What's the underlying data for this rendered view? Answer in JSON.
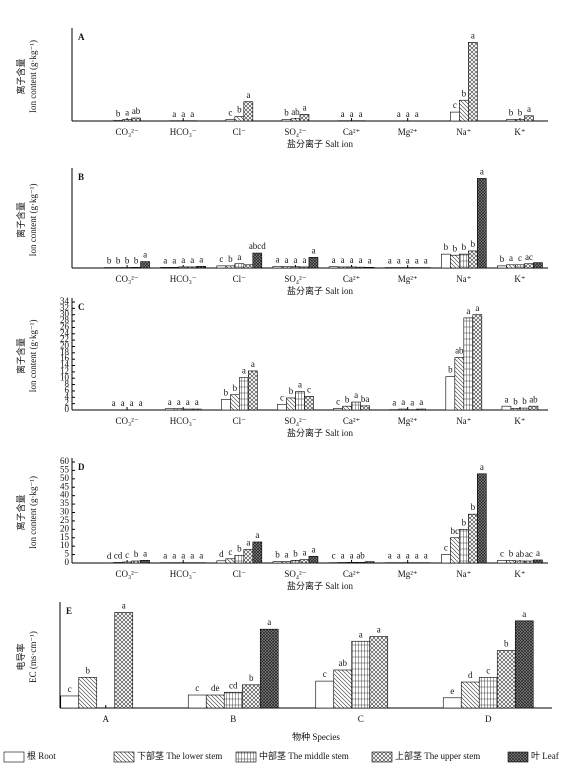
{
  "chart_data": [
    {
      "type": "bar",
      "label": "A",
      "ylabel": "离子含量",
      "ylabel2": "Ion content (g·kg⁻¹)",
      "xlabel": "盐分离子 Salt ion",
      "categories": [
        "CO₃²⁻",
        "HCO₃⁻",
        "Cl⁻",
        "SO₄²⁻",
        "Ca²⁺",
        "Mg²⁺",
        "Na⁺",
        "K⁺"
      ],
      "ylim": [
        0,
        60
      ],
      "series": [
        {
          "name": "根 Root",
          "values": [
            0.3,
            0.2,
            1,
            1,
            0.2,
            0.1,
            6,
            1
          ],
          "letters": [
            "b",
            "a",
            "c",
            "b",
            "a",
            "a",
            "c",
            "b"
          ]
        },
        {
          "name": "下部茎 The lower stem",
          "values": [
            1,
            0.2,
            3,
            1.5,
            0.2,
            0.1,
            14,
            1
          ],
          "letters": [
            "a",
            "a",
            "b",
            "ab",
            "a",
            "a",
            "b",
            "b"
          ]
        },
        {
          "name": "中部茎 The middle stem",
          "values": [
            null,
            null,
            null,
            null,
            null,
            null,
            null,
            null
          ],
          "letters": [
            null,
            null,
            null,
            null,
            null,
            null,
            null,
            null
          ]
        },
        {
          "name": "上部茎 The upper stem",
          "values": [
            2,
            0.2,
            13,
            4.5,
            0.2,
            0.1,
            53,
            3.5
          ],
          "letters": [
            "ab",
            "a",
            "a",
            "a",
            "a",
            "a",
            "a",
            "a"
          ]
        },
        {
          "name": "叶 Leaf",
          "values": [
            null,
            null,
            null,
            null,
            null,
            null,
            null,
            null
          ],
          "letters": [
            null,
            null,
            null,
            null,
            null,
            null,
            null,
            null
          ]
        }
      ]
    },
    {
      "type": "bar",
      "label": "B",
      "ylabel": "离子含量",
      "ylabel2": "Ion content (g·kg⁻¹)",
      "xlabel": "盐分离子 Salt ion",
      "categories": [
        "CO₃²⁻",
        "HCO₃⁻",
        "Cl⁻",
        "SO₄²⁻",
        "Ca²⁺",
        "Mg²⁺",
        "Na⁺",
        "K⁺"
      ],
      "ylim": [
        0,
        45
      ],
      "series": [
        {
          "name": "根 Root",
          "values": [
            0.2,
            0.3,
            1,
            0.8,
            0.6,
            0.2,
            6.5,
            1
          ],
          "letters": [
            "b",
            "a",
            "c",
            "a",
            "a",
            "a",
            "b",
            "b"
          ]
        },
        {
          "name": "下部茎 The lower stem",
          "values": [
            0.2,
            0.3,
            1,
            0.6,
            0.5,
            0.2,
            6,
            1.5
          ],
          "letters": [
            "b",
            "a",
            "b",
            "a",
            "a",
            "a",
            "b",
            "a"
          ]
        },
        {
          "name": "中部茎 The middle stem",
          "values": [
            0.2,
            0.5,
            2,
            0.6,
            0.5,
            0.2,
            6.5,
            1.5
          ],
          "letters": [
            "b",
            "a",
            "a",
            "a",
            "a",
            "a",
            "b",
            "c"
          ]
        },
        {
          "name": "上部茎 The upper stem",
          "values": [
            0.3,
            0.5,
            1.5,
            0.5,
            0.4,
            0.2,
            8,
            2
          ],
          "letters": [
            "b",
            "a",
            null,
            "a",
            "a",
            "a",
            "b",
            "ac"
          ]
        },
        {
          "name": "叶 Leaf",
          "values": [
            3,
            0.8,
            7,
            5,
            0.3,
            0.2,
            42,
            2.5
          ],
          "letters": [
            "a",
            "a",
            "abcd",
            "a",
            "a",
            "a",
            "a",
            null
          ]
        }
      ]
    },
    {
      "type": "bar",
      "label": "C",
      "ylabel": "离子含量",
      "ylabel2": "Ion content (g·kg⁻¹)",
      "xlabel": "盐分离子 Salt ion",
      "categories": [
        "CO₃²⁻",
        "HCO₃⁻",
        "Cl⁻",
        "SO₄²⁻",
        "Ca²⁺",
        "Mg²⁺",
        "Na⁺",
        "K⁺"
      ],
      "ylim": [
        0,
        34
      ],
      "yticks": [
        0,
        2,
        4,
        6,
        8,
        10,
        12,
        14,
        16,
        18,
        20,
        22,
        24,
        26,
        28,
        30,
        32,
        34
      ],
      "series": [
        {
          "name": "根 Root",
          "values": [
            0.05,
            0.4,
            3.3,
            1.8,
            0.5,
            0.1,
            10.5,
            1.2
          ],
          "letters": [
            "a",
            "a",
            "b",
            "c",
            "c",
            "a",
            "b",
            "a"
          ]
        },
        {
          "name": "下部茎 The lower stem",
          "values": [
            0.05,
            0.4,
            4.8,
            3.8,
            1.2,
            0.3,
            16.5,
            0.5
          ],
          "letters": [
            "a",
            "a",
            "b",
            "b",
            "b",
            "a",
            "ab",
            "b"
          ]
        },
        {
          "name": "中部茎 The middle stem",
          "values": [
            0.05,
            0.3,
            10.2,
            5.8,
            2.5,
            0.1,
            29,
            0.6
          ],
          "letters": [
            "a",
            "a",
            "a",
            "a",
            "a",
            "a",
            "a",
            "b"
          ]
        },
        {
          "name": "上部茎 The upper stem",
          "values": [
            0.05,
            0.3,
            12.3,
            4.3,
            1.3,
            0.3,
            30,
            1.2
          ],
          "letters": [
            "a",
            "a",
            "a",
            "c",
            "ba",
            "a",
            "a",
            "ab"
          ]
        },
        {
          "name": "叶 Leaf",
          "values": [
            null,
            null,
            null,
            null,
            null,
            null,
            null,
            null
          ],
          "letters": [
            null,
            null,
            null,
            null,
            null,
            null,
            null,
            null
          ]
        }
      ]
    },
    {
      "type": "bar",
      "label": "D",
      "ylabel": "离子含量",
      "ylabel2": "Ion content (g·kg⁻¹)",
      "xlabel": "盐分离子 Salt ion",
      "categories": [
        "CO₃²⁻",
        "HCO₃⁻",
        "Cl⁻",
        "SO₄²⁻",
        "Ca²⁺",
        "Mg²⁺",
        "Na⁺",
        "K⁺"
      ],
      "ylim": [
        0,
        60
      ],
      "yticks": [
        0,
        5,
        10,
        15,
        20,
        25,
        30,
        35,
        40,
        45,
        50,
        55,
        60
      ],
      "series": [
        {
          "name": "根 Root",
          "values": [
            0.1,
            0.2,
            1.3,
            0.8,
            0.2,
            0.2,
            5,
            1.5
          ],
          "letters": [
            "d",
            "a",
            "d",
            "b",
            "c",
            "a",
            "c",
            "c"
          ]
        },
        {
          "name": "下部茎 The lower stem",
          "values": [
            0.3,
            0.2,
            2.5,
            0.8,
            0.3,
            0.2,
            15,
            1.5
          ],
          "letters": [
            "cd",
            "a",
            "c",
            "a",
            "a",
            "a",
            "bc",
            "b"
          ]
        },
        {
          "name": "中部茎 The middle stem",
          "values": [
            0.6,
            0.2,
            4.5,
            1.5,
            0.4,
            0.2,
            20,
            1.2
          ],
          "letters": [
            "c",
            "a",
            "b",
            "b",
            "a",
            "a",
            "b",
            "ab"
          ]
        },
        {
          "name": "上部茎 The upper stem",
          "values": [
            1.2,
            0.2,
            8,
            2,
            0.4,
            0.2,
            29,
            1.2
          ],
          "letters": [
            "b",
            "a",
            "a",
            "a",
            "ab",
            "a",
            "b",
            "ac"
          ]
        },
        {
          "name": "叶 Leaf",
          "values": [
            1.6,
            0.2,
            12.5,
            4,
            0.8,
            0.2,
            53,
            1.8
          ],
          "letters": [
            "a",
            "a",
            "a",
            "a",
            null,
            "a",
            "a",
            "a"
          ]
        }
      ]
    },
    {
      "type": "bar",
      "label": "E",
      "ylabel": "电导率",
      "ylabel2": "EC (ms·cm⁻¹)",
      "xlabel": "物种 Species",
      "categories": [
        "A",
        "B",
        "C",
        "D"
      ],
      "ylim": [
        0,
        11
      ],
      "series": [
        {
          "name": "根 Root",
          "values": [
            1.3,
            1.4,
            2.9,
            1.1
          ],
          "letters": [
            "c",
            "c",
            "c",
            "e"
          ]
        },
        {
          "name": "下部茎 The lower stem",
          "values": [
            3.3,
            1.4,
            4.1,
            2.8
          ],
          "letters": [
            "b",
            "de",
            "ab",
            "d"
          ]
        },
        {
          "name": "中部茎 The middle stem",
          "values": [
            null,
            1.7,
            7.2,
            3.3
          ],
          "letters": [
            null,
            "cd",
            "a",
            "c"
          ]
        },
        {
          "name": "上部茎 The upper stem",
          "values": [
            10.3,
            2.5,
            7.7,
            6.2
          ],
          "letters": [
            "a",
            "b",
            "a",
            "b"
          ]
        },
        {
          "name": "叶 Leaf",
          "values": [
            null,
            8.5,
            null,
            9.4
          ],
          "letters": [
            null,
            "a",
            null,
            "a"
          ]
        }
      ]
    }
  ]
}
